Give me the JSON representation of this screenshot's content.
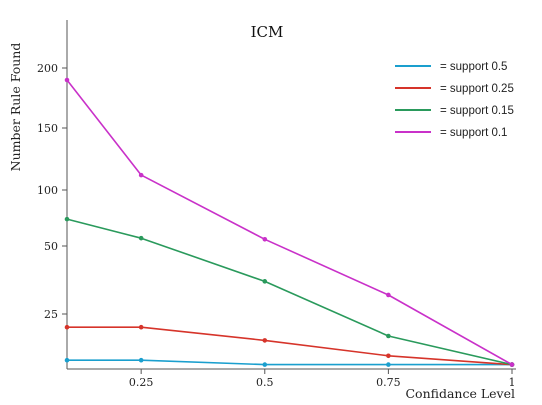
{
  "chart_data": {
    "type": "line",
    "title": "ICM",
    "xlabel": "Confidance Level",
    "ylabel": "Number Rule Found",
    "x": [
      0.1,
      0.25,
      0.5,
      0.75,
      1
    ],
    "x_ticks": [
      0.25,
      0.5,
      0.75,
      1
    ],
    "x_tick_labels": [
      "0.25",
      "0.5",
      "0.75",
      "1"
    ],
    "y_ticks": [
      25,
      50,
      100,
      150,
      200
    ],
    "y_tick_labels": [
      "25",
      "50",
      "100",
      "150",
      "200"
    ],
    "y_scale": "non-linear (tick labels 25, 50, 100, 150, 200 equally spaced above 25)",
    "grid": false,
    "legend_position": "top-right",
    "series": [
      {
        "name": "= support 0.5",
        "color": "#1a9fce",
        "values": [
          4,
          4,
          2,
          2,
          2
        ]
      },
      {
        "name": "= support 0.25",
        "color": "#d6342a",
        "values": [
          19,
          19,
          13,
          6,
          2
        ]
      },
      {
        "name": "= support 0.15",
        "color": "#2a9a5c",
        "values": [
          74,
          57,
          37,
          15,
          2
        ]
      },
      {
        "name": "= support 0.1",
        "color": "#c931c9",
        "values": [
          190,
          112,
          56,
          32,
          2
        ]
      }
    ]
  }
}
